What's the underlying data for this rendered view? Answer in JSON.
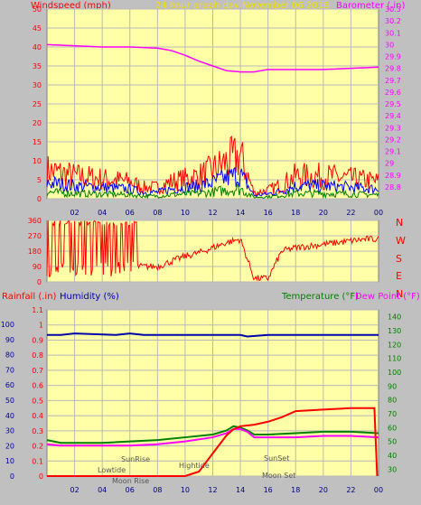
{
  "colors": {
    "background": "#c0c0c0",
    "plot_bg": "#ffffa8",
    "grid": "#b8b8b8",
    "title": "#f0e000",
    "wind": "#ff0000",
    "wind_avg": "#0000ff",
    "wind_low": "#008000",
    "barometer": "#ff00ff",
    "rain": "#ff0000",
    "humidity": "#0000aa",
    "temperature": "#008000",
    "dew_point": "#ff00ff"
  },
  "header": {
    "left_label": "Windspeed (mph)",
    "title": "24 hour graph day   November 06 2018",
    "right_label": "Barometer (.in)"
  },
  "bottom_header": {
    "rain_label": "Rainfall (.in)",
    "humidity_label": "Humidity (%)",
    "temperature_label": "Temperature (°F)",
    "dewpoint_label": "Dew Point (°F)"
  },
  "direction_labels": [
    "N",
    "W",
    "S",
    "E",
    "N"
  ],
  "annotations": {
    "lowtide": "Lowtide",
    "sunrise": "SunRise",
    "moonrise": "Moon Rise",
    "hightide": "Hightide",
    "sunset": "SunSet",
    "moonset": "Moon Set"
  },
  "chart_data": [
    {
      "type": "line",
      "title": "24 hour graph day   November 06 2018",
      "x_ticks": [
        "02",
        "04",
        "06",
        "08",
        "10",
        "12",
        "14",
        "16",
        "18",
        "20",
        "22",
        "00"
      ],
      "left_axis": {
        "label": "Windspeed (mph)",
        "range": [
          0,
          50
        ],
        "ticks": [
          0,
          5,
          10,
          15,
          20,
          25,
          30,
          35,
          40,
          45,
          50
        ]
      },
      "right_axis": {
        "label": "Barometer (.in)",
        "range": [
          28.7,
          30.3
        ],
        "ticks": [
          "28.8",
          "28.9",
          "29",
          "29.1",
          "29.2",
          "29.3",
          "29.4",
          "29.5",
          "29.6",
          "29.7",
          "29.8",
          "29.9",
          "30",
          "30.1",
          "30.2",
          "30.3"
        ]
      },
      "series": [
        {
          "name": "Barometer (.in)",
          "x": [
            0,
            2,
            4,
            6,
            8,
            9,
            10,
            11,
            12,
            13,
            14,
            15,
            16,
            17,
            18,
            20,
            22,
            24
          ],
          "values": [
            30.0,
            29.99,
            29.98,
            29.98,
            29.97,
            29.95,
            29.91,
            29.86,
            29.82,
            29.78,
            29.77,
            29.77,
            29.79,
            29.79,
            29.79,
            29.79,
            29.8,
            29.81
          ]
        },
        {
          "x": [
            0,
            2,
            4,
            6,
            7,
            8,
            9,
            10,
            11,
            12,
            13,
            14,
            15,
            16,
            17,
            18,
            20,
            22,
            24
          ],
          "values": [
            10,
            8,
            7,
            6,
            4,
            4,
            6,
            7,
            8,
            10,
            13,
            15,
            2,
            3,
            5,
            8,
            8,
            7,
            6
          ]
        }
      ]
    },
    {
      "type": "scatter",
      "x_ticks": [],
      "left_axis": {
        "range": [
          0,
          360
        ],
        "ticks": [
          0,
          90,
          180,
          270,
          360
        ]
      },
      "series": [
        {
          "x": [
            0,
            1,
            2,
            3,
            4,
            5,
            6,
            7,
            8,
            9,
            10,
            11,
            12,
            13,
            14,
            15,
            16,
            17,
            18,
            19,
            20,
            21,
            22,
            23,
            24
          ],
          "values": [
            60,
            200,
            120,
            250,
            80,
            200,
            90,
            90,
            90,
            120,
            150,
            170,
            200,
            230,
            250,
            20,
            20,
            180,
            200,
            210,
            220,
            230,
            240,
            250,
            250
          ]
        }
      ]
    },
    {
      "type": "line",
      "x_ticks": [
        "02",
        "04",
        "06",
        "08",
        "10",
        "12",
        "14",
        "16",
        "18",
        "20",
        "22",
        "00"
      ],
      "rain_axis": {
        "label": "Rainfall (.in)",
        "range": [
          0,
          1
        ],
        "ticks": [
          "0",
          "0.1",
          "0.2",
          "0.3",
          "0.4",
          "0.5",
          "0.6",
          "0.7",
          "0.8",
          "0.9",
          "1",
          "1.1"
        ]
      },
      "humidity_axis": {
        "label": "Humidity (%)",
        "range": [
          0,
          100
        ],
        "ticks": [
          0,
          10,
          20,
          30,
          40,
          50,
          60,
          70,
          80,
          90,
          100
        ]
      },
      "temp_axis": {
        "label": "Temperature (°F)",
        "range": [
          25,
          145
        ],
        "ticks": [
          30,
          40,
          50,
          60,
          70,
          80,
          90,
          100,
          110,
          120,
          130,
          140
        ]
      },
      "series": [
        {
          "name": "Humidity (%)",
          "x": [
            0,
            1,
            2,
            5,
            6,
            7,
            10,
            12,
            14,
            14.5,
            16,
            20,
            24
          ],
          "values": [
            93,
            93,
            94,
            93,
            94,
            93,
            93,
            93,
            93,
            92,
            93,
            93,
            93
          ]
        },
        {
          "name": "Temperature (°F)",
          "x": [
            0,
            1,
            2,
            4,
            6,
            8,
            10,
            12,
            13,
            13.5,
            14,
            14.5,
            15,
            16,
            18,
            20,
            22,
            24
          ],
          "values": [
            51,
            49,
            49,
            49,
            50,
            51,
            53,
            55,
            58,
            61,
            60,
            58,
            55,
            55,
            56,
            57,
            57,
            56
          ]
        },
        {
          "name": "Dew Point (°F)",
          "x": [
            0,
            1,
            2,
            4,
            6,
            8,
            10,
            12,
            13,
            13.5,
            14,
            14.5,
            15,
            16,
            18,
            20,
            22,
            24
          ],
          "values": [
            48,
            47,
            47,
            47,
            47,
            48,
            50,
            53,
            56,
            59,
            59,
            57,
            53,
            53,
            53,
            54,
            54,
            53
          ]
        },
        {
          "name": "Rainfall (.in)",
          "x": [
            0,
            4,
            6,
            8,
            10,
            11,
            12,
            13,
            13.5,
            14,
            15,
            16,
            17,
            18,
            20,
            22,
            23.7,
            23.9
          ],
          "values": [
            0,
            0,
            0,
            0,
            0,
            0.03,
            0.15,
            0.27,
            0.31,
            0.33,
            0.34,
            0.36,
            0.39,
            0.43,
            0.44,
            0.45,
            0.45,
            0
          ]
        }
      ]
    }
  ]
}
